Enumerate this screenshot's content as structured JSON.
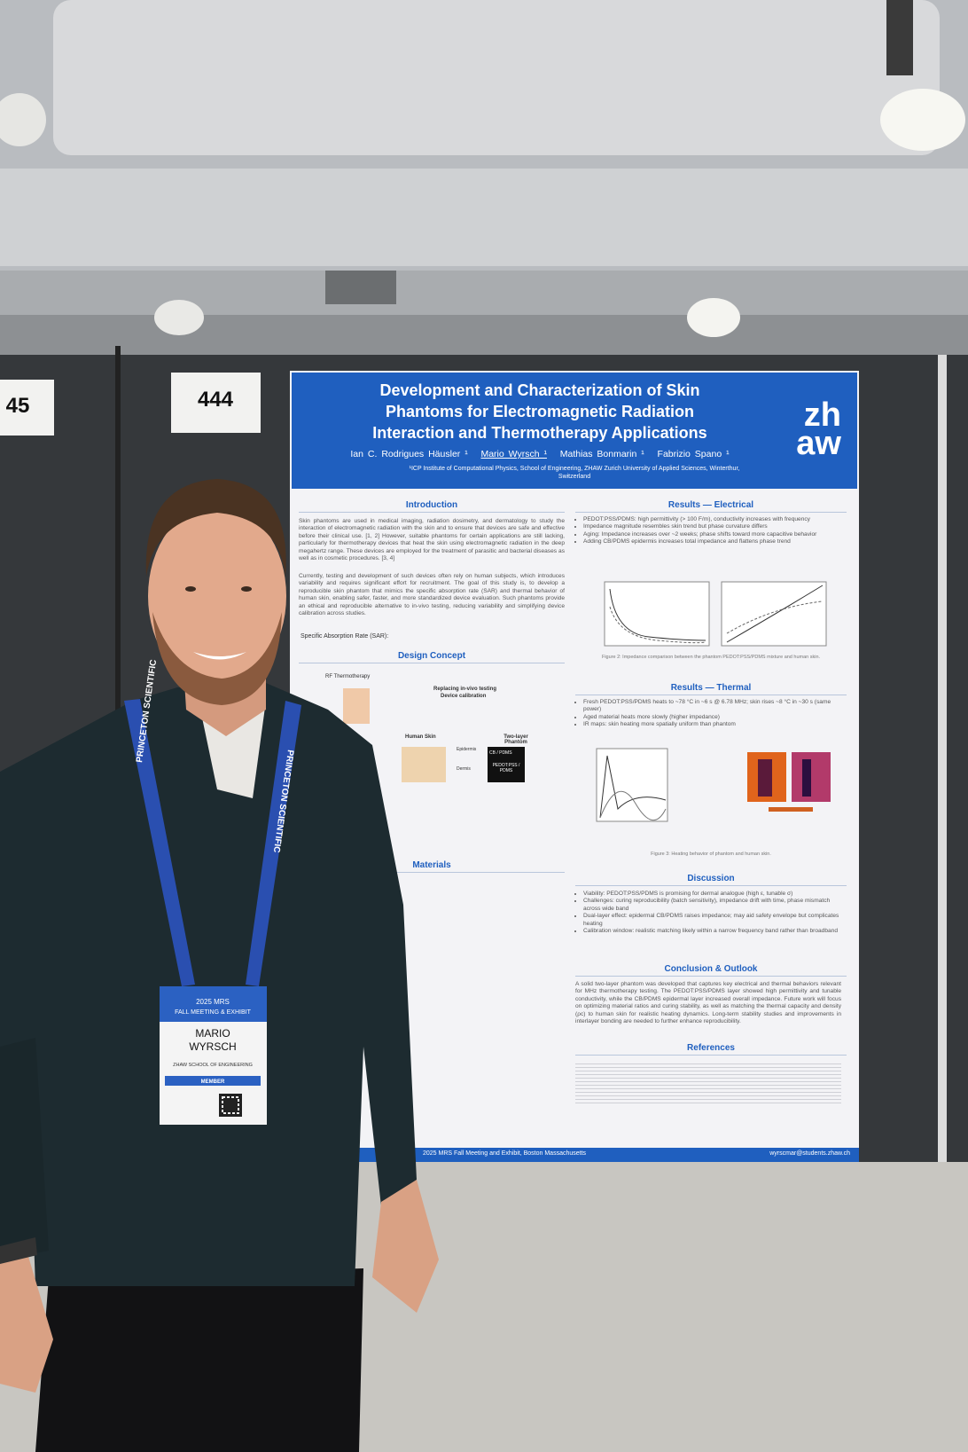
{
  "booth_signs": [
    "444",
    "45"
  ],
  "poster": {
    "title": [
      "Development and Characterization of Skin",
      "Phantoms for Electromagnetic Radiation",
      "Interaction and Thermotherapy Applications"
    ],
    "authors": [
      "Ian C. Rodrigues Häusler ¹",
      "Mario Wyrsch ¹",
      "Mathias Bonmarin ¹",
      "Fabrizio Spano ¹"
    ],
    "affiliation": [
      "¹ICP Institute of Computational Physics, School of Engineering, ZHAW Zurich University of Applied Sciences, Winterthur,",
      "Switzerland"
    ],
    "logo": [
      "zh",
      "aw"
    ],
    "introduction": {
      "heading": "Introduction",
      "paragraphs": [
        "Skin phantoms are used in medical imaging, radiation dosimetry, and dermatology to study the interaction of electromagnetic radiation with the skin and to ensure that devices are safe and effective before their clinical use. [1, 2] However, suitable phantoms for certain applications are still lacking, particularly for thermotherapy devices that heat the skin using electromagnetic radiation in the deep megahertz range. These devices are employed for the treatment of parasitic and bacterial diseases as well as in cosmetic procedures. [3, 4]",
        "Currently, testing and development of such devices often rely on human subjects, which introduces variability and requires significant effort for recruitment. The goal of this study is, to develop a reproducible skin phantom that mimics the specific absorption rate (SAR) and thermal behavior of human skin, enabling safer, faster, and more standardized device evaluation. Such phantoms provide an ethical and reproducible alternative to in-vivo testing, reducing variability and simplifying device calibration across studies."
      ],
      "sar_label": "Specific Absorption Rate (SAR):"
    },
    "design_concept": {
      "heading": "Design Concept",
      "labels": [
        "RF Thermotherapy",
        "Replacing in-vivo testing",
        "Device calibration",
        "Human Skin",
        "Two-layer Phantom",
        "Epidermis",
        "Dermis",
        "CB / PDMS",
        "PEDOT:PSS / PDMS"
      ]
    },
    "materials_heading": "Materials",
    "results_electrical": {
      "heading": "Results — Electrical",
      "bullets": [
        "PEDOT:PSS/PDMS: high permittivity (> 100 F/m), conductivity increases with frequency",
        "Impedance magnitude resembles skin trend but phase curvature differs",
        "Aging: Impedance increases over ~2 weeks; phase shifts toward more capacitive behavior",
        "Adding CB/PDMS epidermis increases total impedance and flattens phase trend"
      ],
      "caption": "Figure 2: Impedance comparison between the phantom PEDOT:PSS/PDMS mixture and human skin."
    },
    "results_thermal": {
      "heading": "Results — Thermal",
      "bullets": [
        "Fresh PEDOT:PSS/PDMS heats to ~78 °C in ~6 s @ 6.78 MHz; skin rises ~8 °C in ~30 s (same power)",
        "Aged material heats more slowly (higher impedance)",
        "IR maps: skin heating more spatially uniform than phantom"
      ],
      "caption": "Figure 3: Heating behavior of phantom and human skin."
    },
    "discussion": {
      "heading": "Discussion",
      "bullets": [
        "Viability: PEDOT:PSS/PDMS is promising for dermal analogue (high ε, tunable σ)",
        "Challenges: curing reproducibility (batch sensitivity), impedance drift with time, phase mismatch across wide band",
        "Dual-layer effect: epidermal CB/PDMS raises impedance; may aid safety envelope but complicates heating",
        "Calibration window: realistic matching likely within a narrow frequency band rather than broadband"
      ]
    },
    "conclusion": {
      "heading": "Conclusion & Outlook",
      "text": "A solid two-layer phantom was developed that captures key electrical and thermal behaviors relevant for MHz thermotherapy testing. The PEDOT:PSS/PDMS layer showed high permittivity and tunable conductivity, while the CB/PDMS epidermal layer increased overall impedance. Future work will focus on optimizing material ratios and curing stability, as well as matching the thermal capacity and density (ρc) to human skin for realistic heating dynamics. Long-term stability studies and improvements in interlayer bonding are needed to further enhance reproducibility."
    },
    "references_heading": "References",
    "footer": [
      "2025 MRS Fall Meeting and Exhibit, Boston Massachusetts",
      "wyrscmar@students.zhaw.ch"
    ]
  },
  "badge": {
    "event": [
      "2025 MRS",
      "FALL MEETING & EXHIBIT"
    ],
    "name": [
      "MARIO",
      "WYRSCH"
    ],
    "affiliation": "ZHAW SCHOOL OF ENGINEERING",
    "role": "MEMBER"
  },
  "lanyard": "PRINCETON SCIENTIFIC"
}
